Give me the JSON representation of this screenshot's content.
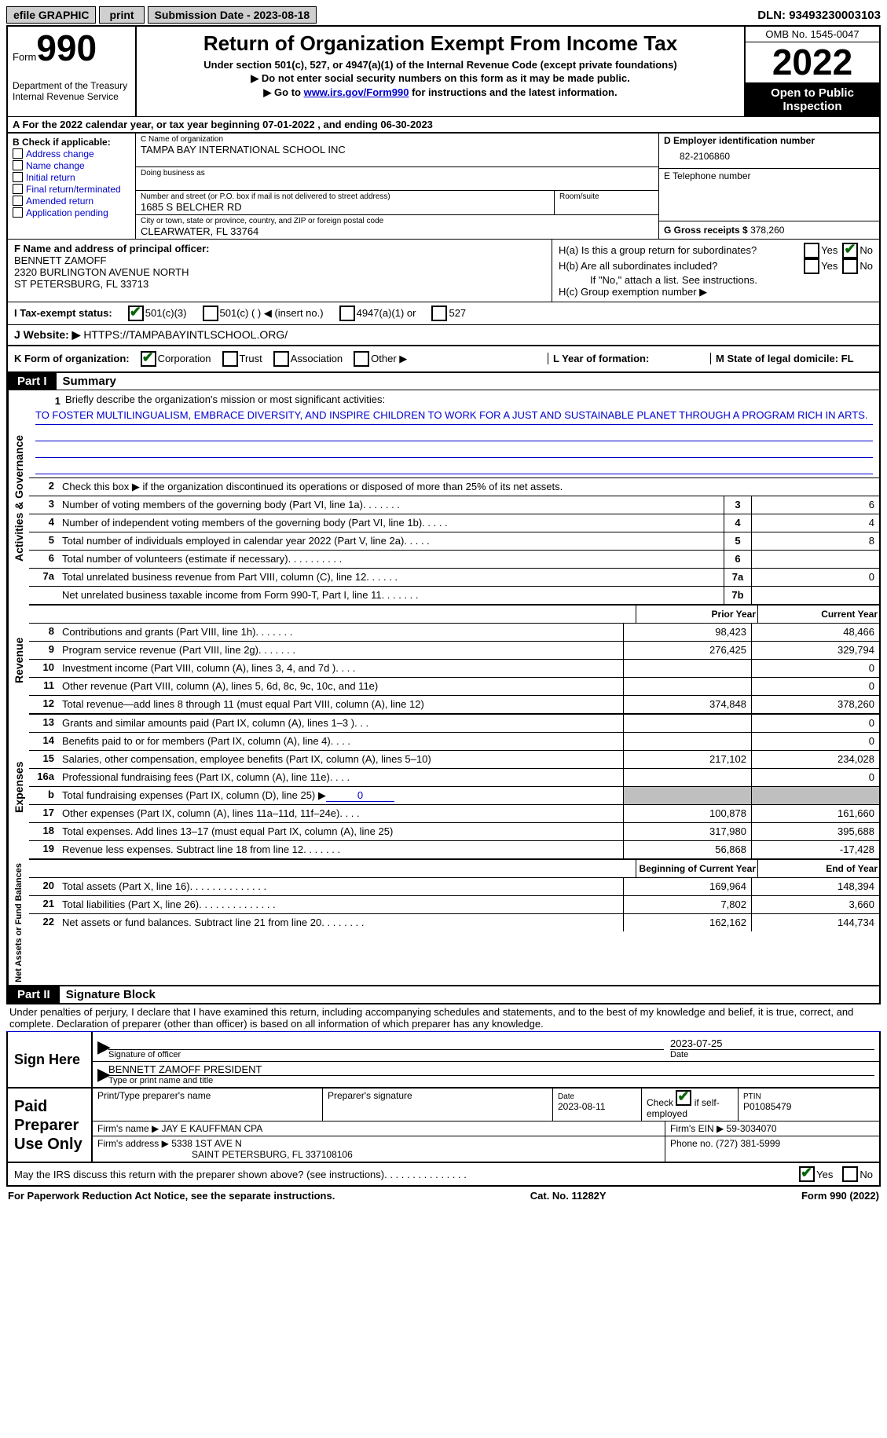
{
  "topbar": {
    "efile": "efile GRAPHIC",
    "print": "print",
    "submission": "Submission Date - 2023-08-18",
    "dln": "DLN: 93493230003103"
  },
  "header": {
    "form_label": "Form",
    "form_number": "990",
    "title": "Return of Organization Exempt From Income Tax",
    "subtitle": "Under section 501(c), 527, or 4947(a)(1) of the Internal Revenue Code (except private foundations)",
    "note1": "▶ Do not enter social security numbers on this form as it may be made public.",
    "note2_pre": "▶ Go to ",
    "note2_link": "www.irs.gov/Form990",
    "note2_post": " for instructions and the latest information.",
    "dept": "Department of the Treasury",
    "irs": "Internal Revenue Service",
    "omb": "OMB No. 1545-0047",
    "year": "2022",
    "open": "Open to Public Inspection"
  },
  "row_a": "A For the 2022 calendar year, or tax year beginning 07-01-2022    , and ending 06-30-2023",
  "col_b": {
    "label": "B Check if applicable:",
    "opts": [
      "Address change",
      "Name change",
      "Initial return",
      "Final return/terminated",
      "Amended return",
      "Application pending"
    ]
  },
  "col_c": {
    "name_label": "C Name of organization",
    "name": "TAMPA BAY INTERNATIONAL SCHOOL INC",
    "dba_label": "Doing business as",
    "addr_label": "Number and street (or P.O. box if mail is not delivered to street address)",
    "room_label": "Room/suite",
    "addr": "1685 S BELCHER RD",
    "city_label": "City or town, state or province, country, and ZIP or foreign postal code",
    "city": "CLEARWATER, FL  33764"
  },
  "col_d": {
    "ein_label": "D Employer identification number",
    "ein": "82-2106860",
    "tel_label": "E Telephone number",
    "tel": "",
    "gross_label": "G Gross receipts $",
    "gross": "378,260"
  },
  "row_f": {
    "label": "F  Name and address of principal officer:",
    "name": "BENNETT ZAMOFF",
    "addr1": "2320 BURLINGTON AVENUE NORTH",
    "addr2": "ST PETERSBURG, FL  33713"
  },
  "row_h": {
    "ha": "H(a)  Is this a group return for subordinates?",
    "hb": "H(b)  Are all subordinates included?",
    "hb_note": "If \"No,\" attach a list. See instructions.",
    "hc": "H(c)  Group exemption number ▶"
  },
  "row_i": {
    "label": "I    Tax-exempt status:",
    "o1": "501(c)(3)",
    "o2": "501(c) (  ) ◀ (insert no.)",
    "o3": "4947(a)(1) or",
    "o4": "527"
  },
  "row_j": {
    "label": "J    Website: ▶",
    "url": "HTTPS://TAMPABAYINTLSCHOOL.ORG/"
  },
  "row_k": {
    "label": "K Form of organization:",
    "o1": "Corporation",
    "o2": "Trust",
    "o3": "Association",
    "o4": "Other ▶",
    "l": "L Year of formation:",
    "m": "M State of legal domicile: FL"
  },
  "part1_title": "Summary",
  "mission": {
    "q": "Briefly describe the organization's mission or most significant activities:",
    "text": "TO FOSTER MULTILINGUALISM, EMBRACE DIVERSITY, AND INSPIRE CHILDREN TO WORK FOR A JUST AND SUSTAINABLE PLANET THROUGH A PROGRAM RICH IN ARTS."
  },
  "lines": {
    "l2": "Check this box ▶         if the organization discontinued its operations or disposed of more than 25% of its net assets.",
    "l3": "Number of voting members of the governing body (Part VI, line 1a)",
    "l4": "Number of independent voting members of the governing body (Part VI, line 1b)",
    "l5": "Total number of individuals employed in calendar year 2022 (Part V, line 2a)",
    "l6": "Total number of volunteers (estimate if necessary)",
    "l7a": "Total unrelated business revenue from Part VIII, column (C), line 12",
    "l7b": "Net unrelated business taxable income from Form 990-T, Part I, line 11",
    "l8": "Contributions and grants (Part VIII, line 1h)",
    "l9": "Program service revenue (Part VIII, line 2g)",
    "l10": "Investment income (Part VIII, column (A), lines 3, 4, and 7d )",
    "l11": "Other revenue (Part VIII, column (A), lines 5, 6d, 8c, 9c, 10c, and 11e)",
    "l12": "Total revenue—add lines 8 through 11 (must equal Part VIII, column (A), line 12)",
    "l13": "Grants and similar amounts paid (Part IX, column (A), lines 1–3 )",
    "l14": "Benefits paid to or for members (Part IX, column (A), line 4)",
    "l15": "Salaries, other compensation, employee benefits (Part IX, column (A), lines 5–10)",
    "l16a": "Professional fundraising fees (Part IX, column (A), line 11e)",
    "l16b_pre": "Total fundraising expenses (Part IX, column (D), line 25) ▶",
    "l16b_val": "0",
    "l17": "Other expenses (Part IX, column (A), lines 11a–11d, 11f–24e)",
    "l18": "Total expenses. Add lines 13–17 (must equal Part IX, column (A), line 25)",
    "l19": "Revenue less expenses. Subtract line 18 from line 12",
    "l20": "Total assets (Part X, line 16)",
    "l21": "Total liabilities (Part X, line 26)",
    "l22": "Net assets or fund balances. Subtract line 21 from line 20"
  },
  "vals": {
    "v3": "6",
    "v4": "4",
    "v5": "8",
    "v6": "",
    "v7a": "0",
    "v7b": "",
    "prior_hdr": "Prior Year",
    "curr_hdr": "Current Year",
    "p8": "98,423",
    "c8": "48,466",
    "p9": "276,425",
    "c9": "329,794",
    "p10": "",
    "c10": "0",
    "p11": "",
    "c11": "0",
    "p12": "374,848",
    "c12": "378,260",
    "p13": "",
    "c13": "0",
    "p14": "",
    "c14": "0",
    "p15": "217,102",
    "c15": "234,028",
    "p16a": "",
    "c16a": "0",
    "p17": "100,878",
    "c17": "161,660",
    "p18": "317,980",
    "c18": "395,688",
    "p19": "56,868",
    "c19": "-17,428",
    "beg_hdr": "Beginning of Current Year",
    "end_hdr": "End of Year",
    "p20": "169,964",
    "c20": "148,394",
    "p21": "7,802",
    "c21": "3,660",
    "p22": "162,162",
    "c22": "144,734"
  },
  "part2_title": "Signature Block",
  "penalties": "Under penalties of perjury, I declare that I have examined this return, including accompanying schedules and statements, and to the best of my knowledge and belief, it is true, correct, and complete. Declaration of preparer (other than officer) is based on all information of which preparer has any knowledge.",
  "sign": {
    "here": "Sign Here",
    "sig_label": "Signature of officer",
    "date": "2023-07-25",
    "date_label": "Date",
    "name": "BENNETT ZAMOFF  PRESIDENT",
    "name_label": "Type or print name and title"
  },
  "paid": {
    "title": "Paid Preparer Use Only",
    "h1": "Print/Type preparer's name",
    "h2": "Preparer's signature",
    "h3_label": "Date",
    "h3": "2023-08-11",
    "h4_pre": "Check",
    "h4_post": "if self-employed",
    "h5_label": "PTIN",
    "h5": "P01085479",
    "firm_label": "Firm's name    ▶",
    "firm": "JAY E KAUFFMAN CPA",
    "ein_label": "Firm's EIN ▶",
    "ein": "59-3034070",
    "addr_label": "Firm's address ▶",
    "addr1": "5338 1ST AVE N",
    "addr2": "SAINT PETERSBURG, FL  337108106",
    "phone_label": "Phone no.",
    "phone": "(727) 381-5999"
  },
  "discuss": "May the IRS discuss this return with the preparer shown above? (see instructions)",
  "footer": {
    "left": "For Paperwork Reduction Act Notice, see the separate instructions.",
    "mid": "Cat. No. 11282Y",
    "right": "Form 990 (2022)"
  },
  "vert": {
    "gov": "Activities & Governance",
    "rev": "Revenue",
    "exp": "Expenses",
    "net": "Net Assets or Fund Balances"
  }
}
